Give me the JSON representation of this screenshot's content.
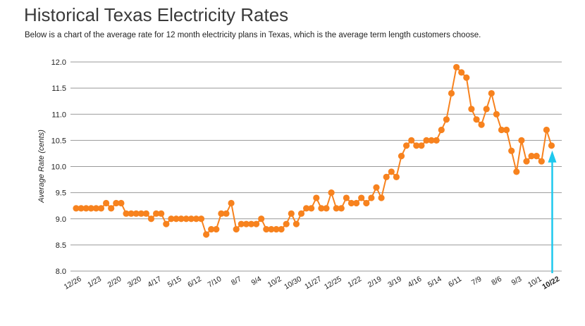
{
  "header": {
    "title": "Historical Texas Electricity Rates",
    "subtitle": "Below is a chart of the average rate for 12 month electricity plans in Texas, which is the average term length customers choose."
  },
  "colors": {
    "series": "#f7821e",
    "arrow": "#1ec8ee",
    "grid": "#999999"
  },
  "chart_data": {
    "type": "line",
    "title": "",
    "xlabel": "",
    "ylabel": "Average Rate (cents)",
    "ylim": [
      8.0,
      12.0
    ],
    "y_ticks": [
      "8.0",
      "8.5",
      "9.0",
      "9.5",
      "10.0",
      "10.5",
      "11.0",
      "11.5",
      "12.0"
    ],
    "grid": true,
    "x_tick_labels": [
      "12/26",
      "1/23",
      "2/20",
      "3/20",
      "4/17",
      "5/15",
      "6/12",
      "7/10",
      "8/7",
      "9/4",
      "10/2",
      "10/30",
      "11/27",
      "12/25",
      "1/22",
      "2/19",
      "3/19",
      "4/16",
      "5/14",
      "6/11",
      "7/9",
      "8/6",
      "9/3",
      "10/1"
    ],
    "last_label": "10/22",
    "values": [
      9.2,
      9.2,
      9.2,
      9.2,
      9.2,
      9.2,
      9.3,
      9.2,
      9.3,
      9.3,
      9.1,
      9.1,
      9.1,
      9.1,
      9.1,
      9.0,
      9.1,
      9.1,
      8.9,
      9.0,
      9.0,
      9.0,
      9.0,
      9.0,
      9.0,
      9.0,
      8.7,
      8.8,
      8.8,
      9.1,
      9.1,
      9.3,
      8.8,
      8.9,
      8.9,
      8.9,
      8.9,
      9.0,
      8.8,
      8.8,
      8.8,
      8.8,
      8.9,
      9.1,
      8.9,
      9.1,
      9.2,
      9.2,
      9.4,
      9.2,
      9.2,
      9.5,
      9.2,
      9.2,
      9.4,
      9.3,
      9.3,
      9.4,
      9.3,
      9.4,
      9.6,
      9.4,
      9.8,
      9.9,
      9.8,
      10.2,
      10.4,
      10.5,
      10.4,
      10.4,
      10.5,
      10.5,
      10.5,
      10.7,
      10.9,
      11.4,
      11.9,
      11.8,
      11.7,
      11.1,
      10.9,
      10.8,
      11.1,
      11.4,
      11.0,
      10.7,
      10.7,
      10.3,
      9.9,
      10.5,
      10.1,
      10.2,
      10.2,
      10.1,
      10.7,
      10.4
    ]
  }
}
